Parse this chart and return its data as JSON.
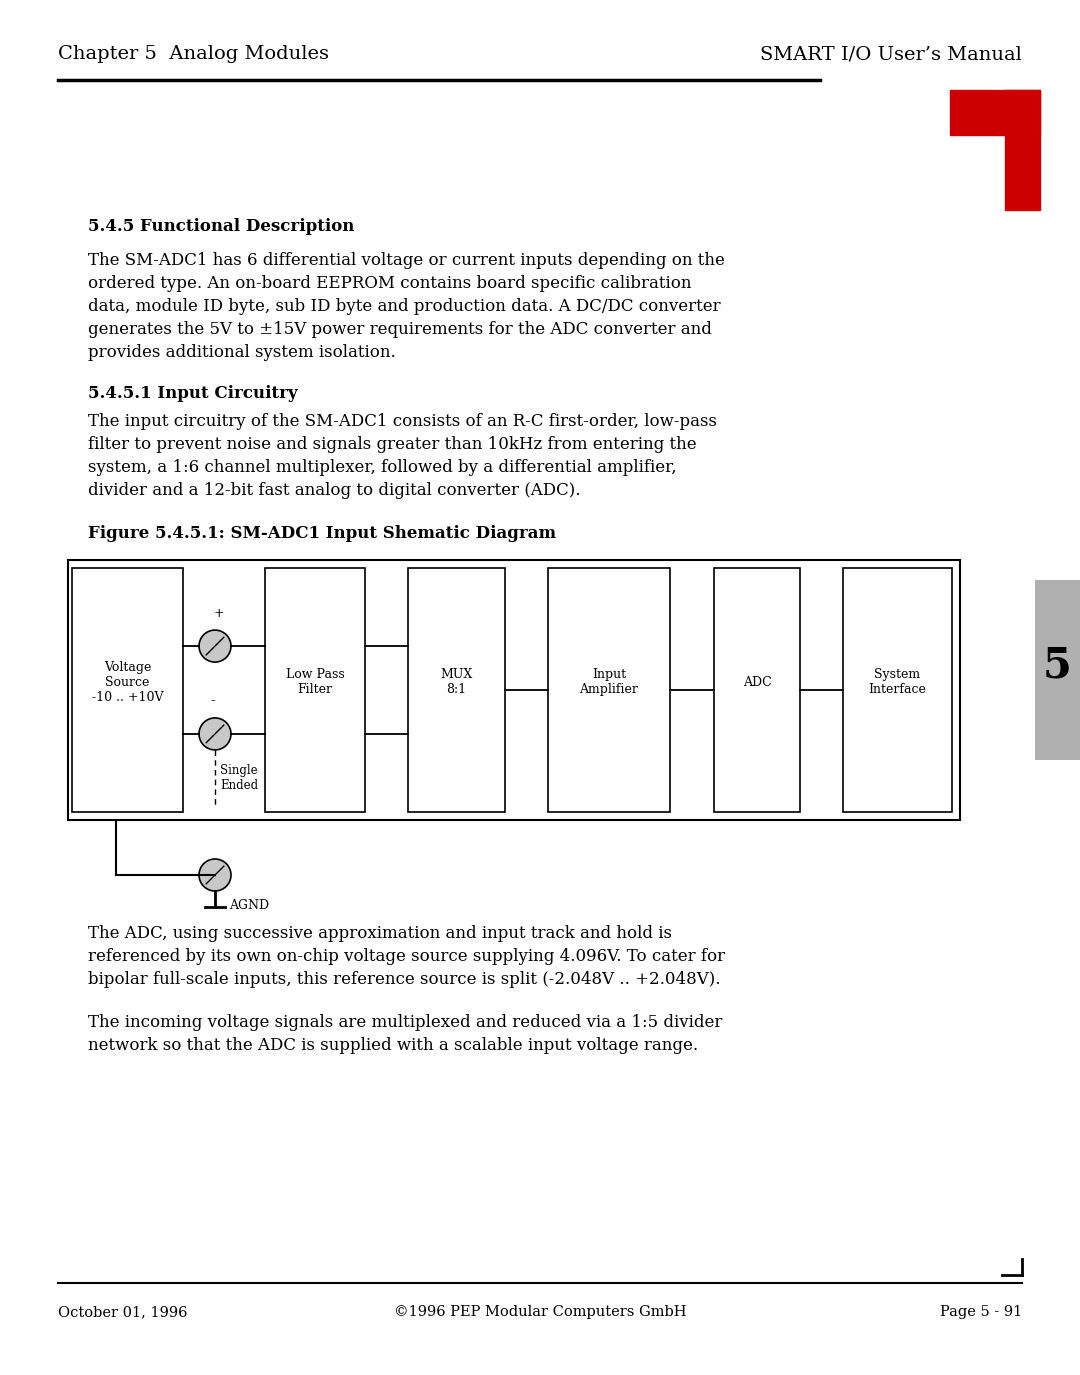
{
  "header_left": "Chapter 5  Analog Modules",
  "header_right": "SMART I/O User’s Manual",
  "footer_left": "October 01, 1996",
  "footer_center": "©1996 PEP Modular Computers GmbH",
  "footer_right": "Page 5 - 91",
  "section_title": "5.4.5 Functional Description",
  "section_body1_lines": [
    "The SM-ADC1 has 6 differential voltage or current inputs depending on the",
    "ordered type. An on-board EEPROM contains board specific calibration",
    "data, module ID byte, sub ID byte and production data. A DC/DC converter",
    "generates the 5V to ±15V power requirements for the ADC converter and",
    "provides additional system isolation."
  ],
  "section_title2": "5.4.5.1 Input Circuitry",
  "section_body2_lines": [
    "The input circuitry of the SM-ADC1 consists of an R-C first-order, low-pass",
    "filter to prevent noise and signals greater than 10kHz from entering the",
    "system, a 1:6 channel multiplexer, followed by a differential amplifier,",
    "divider and a 12-bit fast analog to digital converter (ADC)."
  ],
  "figure_title": "Figure 5.4.5.1: SM-ADC1 Input Shematic Diagram",
  "section_body3_lines": [
    "The ADC, using successive approximation and input track and hold is",
    "referenced by its own on-chip voltage source supplying 4.096V. To cater for",
    "bipolar full-scale inputs, this reference source is split (-2.048V .. +2.048V)."
  ],
  "section_body4_lines": [
    "The incoming voltage signals are multiplexed and reduced via a 1:5 divider",
    "network so that the ADC is supplied with a scalable input voltage range."
  ],
  "bg_color": "#ffffff",
  "text_color": "#000000",
  "red_color": "#cc0000",
  "tab_number": "5"
}
